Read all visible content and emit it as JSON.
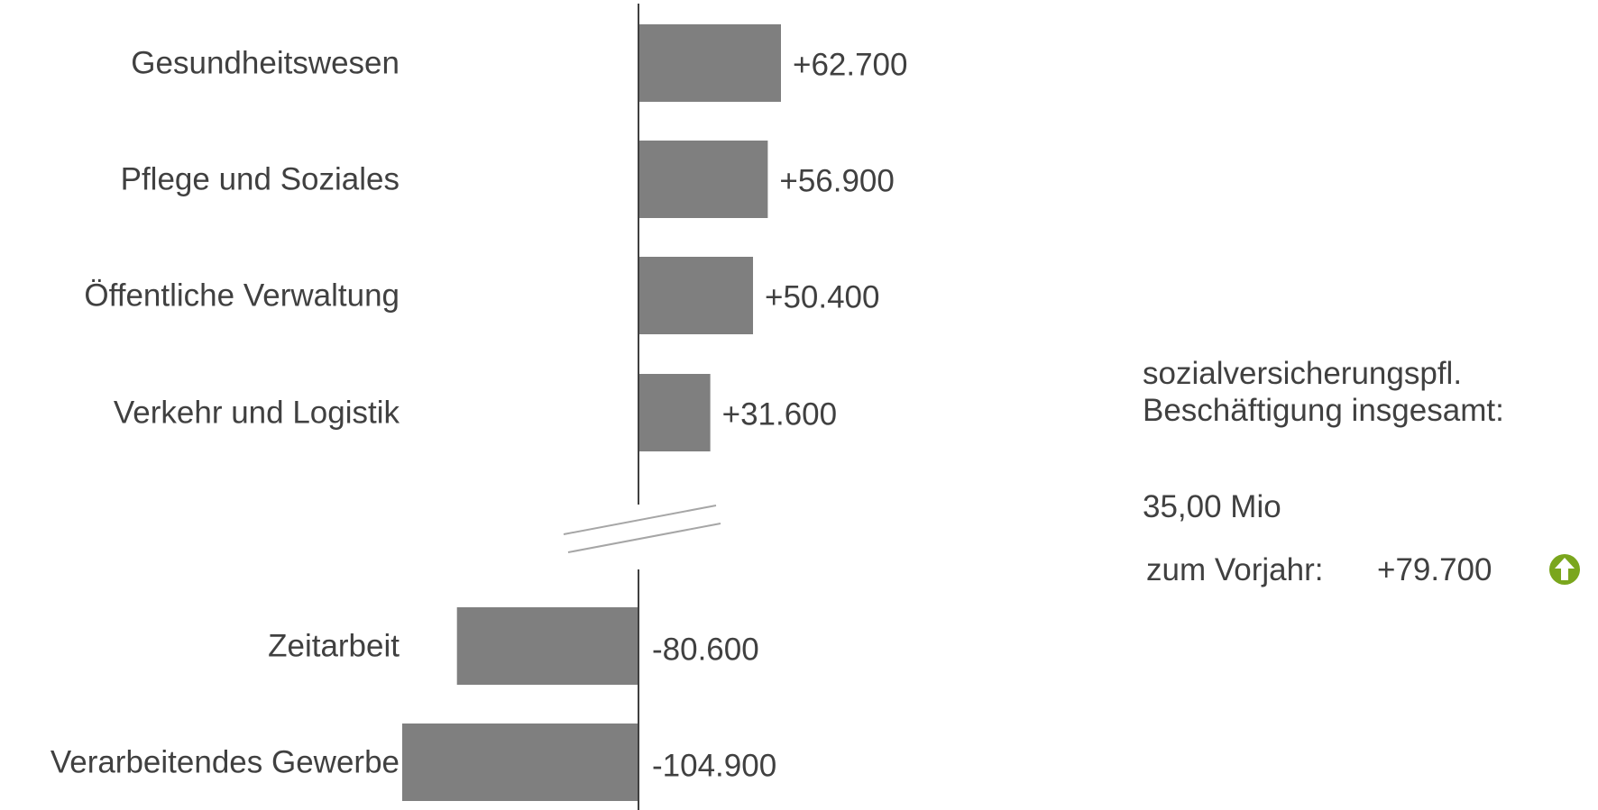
{
  "chart_data": {
    "type": "bar",
    "orientation": "horizontal",
    "axis_break": true,
    "categories": [
      "Gesundheitswesen",
      "Pflege und Soziales",
      "Öffentliche Verwaltung",
      "Verkehr und Logistik",
      "Zeitarbeit",
      "Verarbeitendes Gewerbe"
    ],
    "values": [
      62700,
      56900,
      50400,
      31600,
      -80600,
      -104900
    ],
    "value_labels": [
      "+62.700",
      "+56.900",
      "+50.400",
      "+31.600",
      "-80.600",
      "-104.900"
    ],
    "bar_color": "#7f7f7f"
  },
  "summary": {
    "title": "sozialversicherungspfl. Beschäftigung insgesamt:",
    "total": "35,00 Mio",
    "change_label": "zum Vorjahr:",
    "change_value": "+79.700",
    "trend_icon": "arrow-up-circle-icon",
    "trend_color": "#7aa61d"
  }
}
